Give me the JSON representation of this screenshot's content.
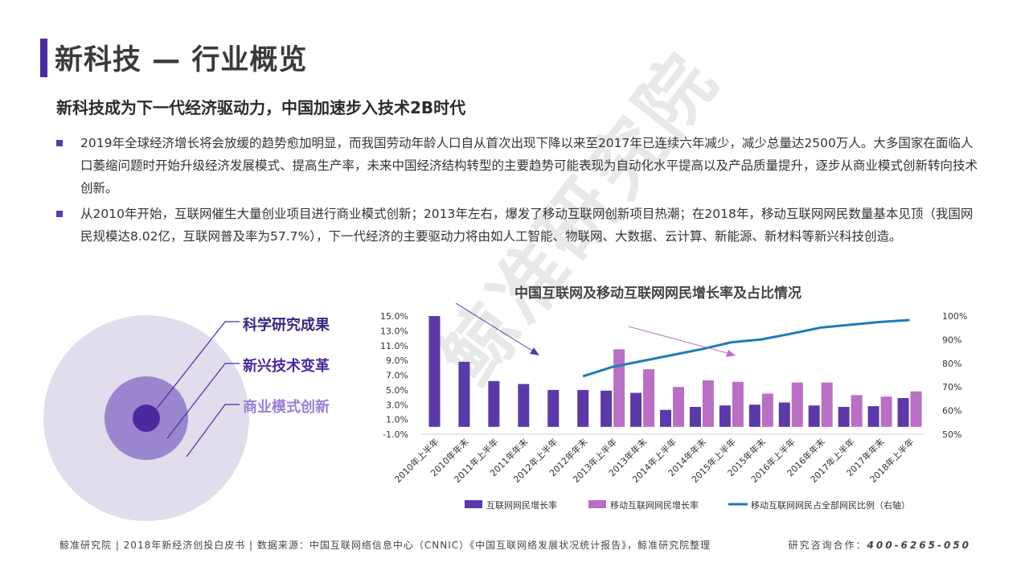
{
  "header": {
    "title": "新科技 — 行业概览",
    "subtitle": "新科技成为下一代经济驱动力，中国加速步入技术2B时代"
  },
  "paragraphs": [
    "2019年全球经济增长将会放缓的趋势愈加明显，而我国劳动年龄人口自从首次出现下降以来至2017年已连续六年减少，减少总量达2500万人。大多国家在面临人口萎缩问题时开始升级经济发展模式、提高生产率，未来中国经济结构转型的主要趋势可能表现为自动化水平提高以及产品质量提升，逐步从商业模式创新转向技术创新。",
    "从2010年开始，互联网催生大量创业项目进行商业模式创新；2013年左右，爆发了移动互联网创新项目热潮；在2018年，移动互联网网民数量基本见顶（我国网民规模达8.02亿，互联网普及率为57.7%），下一代经济的主要驱动力将由如人工智能、物联网、大数据、云计算、新能源、新材料等新兴科技创造。"
  ],
  "watermark": "鲸准研究院",
  "rings": {
    "labels": [
      "科学研究成果",
      "新兴技术变革",
      "商业模式创新"
    ],
    "colors": [
      "#4b2aa0",
      "#9a86cf",
      "#ddd8ea"
    ]
  },
  "chart_data": {
    "type": "bar",
    "title": "中国互联网及移动互联网网民增长率及占比情况",
    "categories": [
      "2010年上半年",
      "2010年年末",
      "2011年上半年",
      "2011年年末",
      "2012年上半年",
      "2012年年末",
      "2013年上半年",
      "2013年年末",
      "2014年上半年",
      "2014年年末",
      "2015年上半年",
      "2015年年末",
      "2016年上半年",
      "2016年年末",
      "2017年上半年",
      "2017年年末",
      "2018年上半年"
    ],
    "series": [
      {
        "name": "互联网网民增长率",
        "axis": "left",
        "type": "bar",
        "color": "#5b3aa8",
        "values": [
          15.0,
          8.8,
          6.2,
          5.8,
          5.0,
          5.0,
          4.9,
          4.6,
          2.3,
          2.7,
          2.9,
          3.0,
          3.3,
          2.9,
          2.7,
          2.8,
          3.9
        ]
      },
      {
        "name": "移动互联网网民增长率",
        "axis": "left",
        "type": "bar",
        "color": "#b86fc4",
        "values": [
          null,
          null,
          null,
          null,
          null,
          null,
          10.5,
          7.8,
          5.4,
          6.3,
          6.1,
          4.5,
          6.0,
          6.0,
          4.3,
          4.1,
          4.8
        ]
      },
      {
        "name": "移动互联网网民占全部网民比例（右轴）",
        "axis": "right",
        "type": "line",
        "color": "#1f7bb8",
        "values": [
          null,
          null,
          null,
          null,
          null,
          74.5,
          78.5,
          81.0,
          83.5,
          86.0,
          88.9,
          90.1,
          92.5,
          95.1,
          96.3,
          97.5,
          98.3
        ]
      }
    ],
    "y_left": {
      "ticks": [
        15.0,
        13.0,
        11.0,
        9.0,
        7.0,
        5.0,
        3.0,
        1.0,
        -1.0
      ],
      "ylim": [
        -1,
        15
      ]
    },
    "y_right": {
      "ticks": [
        100,
        90,
        80,
        70,
        60,
        50
      ],
      "ylim": [
        50,
        100
      ]
    },
    "left_tick_labels": [
      "15.0%",
      "13.0%",
      "11.0%",
      "9.0%",
      "7.0%",
      "5.0%",
      "3.0%",
      "1.0%",
      "-1.0%"
    ],
    "right_tick_labels": [
      "100%",
      "90%",
      "80%",
      "70%",
      "60%",
      "50%"
    ],
    "legend": [
      "互联网网民增长率",
      "移动互联网网民增长率",
      "移动互联网网民占全部网民比例（右轴）"
    ],
    "legend_position": "bottom"
  },
  "footer": {
    "left": "鲸准研究院 | 2018年新经济创投白皮书 | 数据来源：中国互联网络信息中心（CNNIC）《中国互联网络发展状况统计报告》，鲸准研究院整理",
    "right_prefix": "研究咨询合作：",
    "right_phone": "400-6265-050"
  }
}
